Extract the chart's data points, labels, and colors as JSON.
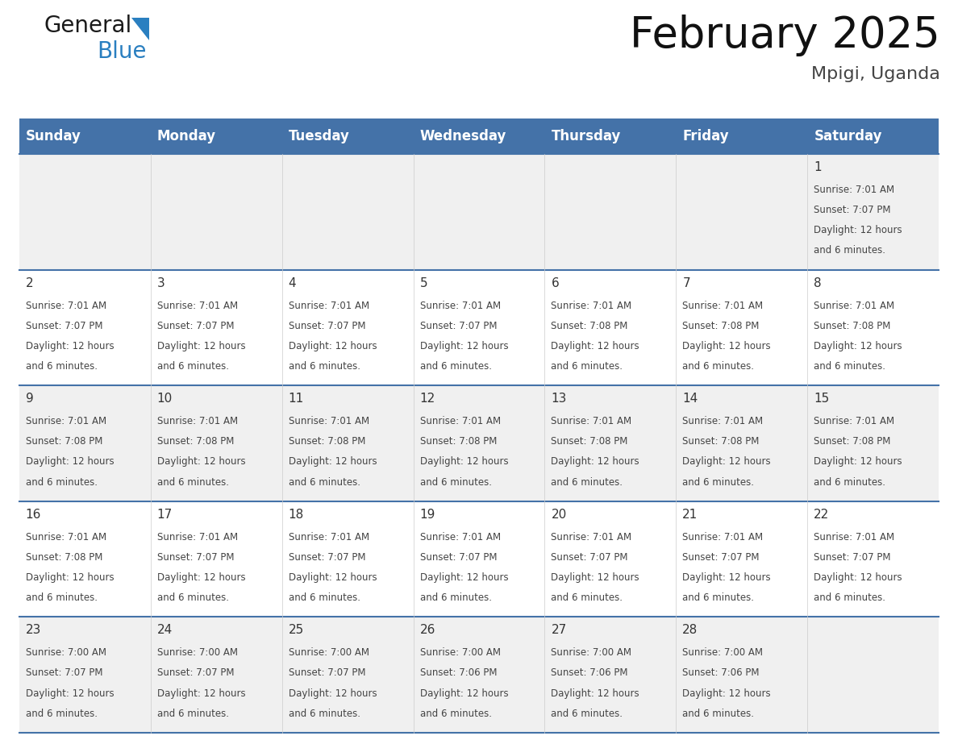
{
  "title": "February 2025",
  "subtitle": "Mpigi, Uganda",
  "header_bg": "#4472A8",
  "header_text_color": "#FFFFFF",
  "days_of_week": [
    "Sunday",
    "Monday",
    "Tuesday",
    "Wednesday",
    "Thursday",
    "Friday",
    "Saturday"
  ],
  "row_bg_odd": "#F0F0F0",
  "row_bg_even": "#FFFFFF",
  "grid_line_color": "#4472A8",
  "day_number_color": "#333333",
  "cell_text_color": "#444444",
  "calendar": [
    [
      null,
      null,
      null,
      null,
      null,
      null,
      {
        "day": "1",
        "sunrise": "7:01 AM",
        "sunset": "7:07 PM",
        "daylight": "12 hours",
        "daylight2": "and 6 minutes."
      }
    ],
    [
      {
        "day": "2",
        "sunrise": "7:01 AM",
        "sunset": "7:07 PM",
        "daylight": "12 hours",
        "daylight2": "and 6 minutes."
      },
      {
        "day": "3",
        "sunrise": "7:01 AM",
        "sunset": "7:07 PM",
        "daylight": "12 hours",
        "daylight2": "and 6 minutes."
      },
      {
        "day": "4",
        "sunrise": "7:01 AM",
        "sunset": "7:07 PM",
        "daylight": "12 hours",
        "daylight2": "and 6 minutes."
      },
      {
        "day": "5",
        "sunrise": "7:01 AM",
        "sunset": "7:07 PM",
        "daylight": "12 hours",
        "daylight2": "and 6 minutes."
      },
      {
        "day": "6",
        "sunrise": "7:01 AM",
        "sunset": "7:08 PM",
        "daylight": "12 hours",
        "daylight2": "and 6 minutes."
      },
      {
        "day": "7",
        "sunrise": "7:01 AM",
        "sunset": "7:08 PM",
        "daylight": "12 hours",
        "daylight2": "and 6 minutes."
      },
      {
        "day": "8",
        "sunrise": "7:01 AM",
        "sunset": "7:08 PM",
        "daylight": "12 hours",
        "daylight2": "and 6 minutes."
      }
    ],
    [
      {
        "day": "9",
        "sunrise": "7:01 AM",
        "sunset": "7:08 PM",
        "daylight": "12 hours",
        "daylight2": "and 6 minutes."
      },
      {
        "day": "10",
        "sunrise": "7:01 AM",
        "sunset": "7:08 PM",
        "daylight": "12 hours",
        "daylight2": "and 6 minutes."
      },
      {
        "day": "11",
        "sunrise": "7:01 AM",
        "sunset": "7:08 PM",
        "daylight": "12 hours",
        "daylight2": "and 6 minutes."
      },
      {
        "day": "12",
        "sunrise": "7:01 AM",
        "sunset": "7:08 PM",
        "daylight": "12 hours",
        "daylight2": "and 6 minutes."
      },
      {
        "day": "13",
        "sunrise": "7:01 AM",
        "sunset": "7:08 PM",
        "daylight": "12 hours",
        "daylight2": "and 6 minutes."
      },
      {
        "day": "14",
        "sunrise": "7:01 AM",
        "sunset": "7:08 PM",
        "daylight": "12 hours",
        "daylight2": "and 6 minutes."
      },
      {
        "day": "15",
        "sunrise": "7:01 AM",
        "sunset": "7:08 PM",
        "daylight": "12 hours",
        "daylight2": "and 6 minutes."
      }
    ],
    [
      {
        "day": "16",
        "sunrise": "7:01 AM",
        "sunset": "7:08 PM",
        "daylight": "12 hours",
        "daylight2": "and 6 minutes."
      },
      {
        "day": "17",
        "sunrise": "7:01 AM",
        "sunset": "7:07 PM",
        "daylight": "12 hours",
        "daylight2": "and 6 minutes."
      },
      {
        "day": "18",
        "sunrise": "7:01 AM",
        "sunset": "7:07 PM",
        "daylight": "12 hours",
        "daylight2": "and 6 minutes."
      },
      {
        "day": "19",
        "sunrise": "7:01 AM",
        "sunset": "7:07 PM",
        "daylight": "12 hours",
        "daylight2": "and 6 minutes."
      },
      {
        "day": "20",
        "sunrise": "7:01 AM",
        "sunset": "7:07 PM",
        "daylight": "12 hours",
        "daylight2": "and 6 minutes."
      },
      {
        "day": "21",
        "sunrise": "7:01 AM",
        "sunset": "7:07 PM",
        "daylight": "12 hours",
        "daylight2": "and 6 minutes."
      },
      {
        "day": "22",
        "sunrise": "7:01 AM",
        "sunset": "7:07 PM",
        "daylight": "12 hours",
        "daylight2": "and 6 minutes."
      }
    ],
    [
      {
        "day": "23",
        "sunrise": "7:00 AM",
        "sunset": "7:07 PM",
        "daylight": "12 hours",
        "daylight2": "and 6 minutes."
      },
      {
        "day": "24",
        "sunrise": "7:00 AM",
        "sunset": "7:07 PM",
        "daylight": "12 hours",
        "daylight2": "and 6 minutes."
      },
      {
        "day": "25",
        "sunrise": "7:00 AM",
        "sunset": "7:07 PM",
        "daylight": "12 hours",
        "daylight2": "and 6 minutes."
      },
      {
        "day": "26",
        "sunrise": "7:00 AM",
        "sunset": "7:06 PM",
        "daylight": "12 hours",
        "daylight2": "and 6 minutes."
      },
      {
        "day": "27",
        "sunrise": "7:00 AM",
        "sunset": "7:06 PM",
        "daylight": "12 hours",
        "daylight2": "and 6 minutes."
      },
      {
        "day": "28",
        "sunrise": "7:00 AM",
        "sunset": "7:06 PM",
        "daylight": "12 hours",
        "daylight2": "and 6 minutes."
      },
      null
    ]
  ],
  "logo_text1": "General",
  "logo_text2": "Blue",
  "logo_text1_color": "#1a1a1a",
  "logo_text2_color": "#2A7FC0",
  "logo_triangle_color": "#2A7FC0",
  "title_fontsize": 38,
  "subtitle_fontsize": 16,
  "header_fontsize": 12,
  "day_num_fontsize": 11,
  "cell_fontsize": 8.5
}
